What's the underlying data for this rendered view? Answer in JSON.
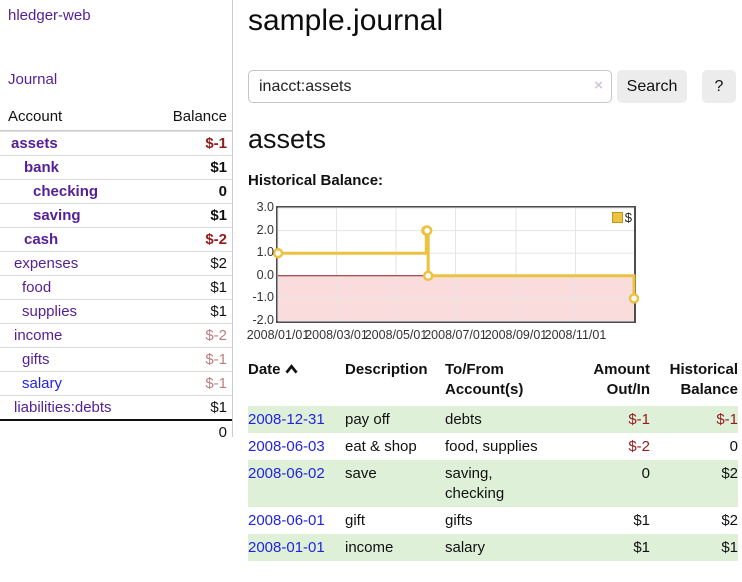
{
  "app": {
    "brand": "hledger-web",
    "nav_journal": "Journal"
  },
  "sidebar": {
    "accounts_header": {
      "account": "Account",
      "balance": "Balance"
    },
    "accounts": [
      {
        "name": "assets",
        "balance": "$-1",
        "row_class": "cur",
        "link_class": "",
        "bal_class": "neg",
        "depth_pad": "11px"
      },
      {
        "name": "bank",
        "balance": "$1",
        "row_class": "cur",
        "link_class": "",
        "bal_class": "",
        "depth_pad": "24px"
      },
      {
        "name": "checking",
        "balance": "0",
        "row_class": "cur",
        "link_class": "",
        "bal_class": "",
        "depth_pad": "33px"
      },
      {
        "name": "saving",
        "balance": "$1",
        "row_class": "cur",
        "link_class": "",
        "bal_class": "",
        "depth_pad": "33px"
      },
      {
        "name": "cash",
        "balance": "$-2",
        "row_class": "cur",
        "link_class": "",
        "bal_class": "neg",
        "depth_pad": "24px"
      },
      {
        "name": "expenses",
        "balance": "$2",
        "row_class": "",
        "link_class": "",
        "bal_class": "",
        "depth_pad": "14px"
      },
      {
        "name": "food",
        "balance": "$1",
        "row_class": "",
        "link_class": "",
        "bal_class": "",
        "depth_pad": "22px"
      },
      {
        "name": "supplies",
        "balance": "$1",
        "row_class": "",
        "link_class": "",
        "bal_class": "",
        "depth_pad": "22px"
      },
      {
        "name": "income",
        "balance": "$-2",
        "row_class": "",
        "link_class": "",
        "bal_class": "softneg",
        "depth_pad": "14px"
      },
      {
        "name": "gifts",
        "balance": "$-1",
        "row_class": "",
        "link_class": "",
        "bal_class": "softneg",
        "depth_pad": "22px"
      },
      {
        "name": "salary",
        "balance": "$-1",
        "row_class": "",
        "link_class": "blue",
        "bal_class": "softneg",
        "depth_pad": "22px"
      },
      {
        "name": "liabilities:debts",
        "balance": "$1",
        "row_class": "",
        "link_class": "",
        "bal_class": "",
        "depth_pad": "14px"
      }
    ],
    "total": "0"
  },
  "header": {
    "title": "sample.journal"
  },
  "search": {
    "value": "inacct:assets",
    "clear_icon": "×",
    "button": "Search",
    "help_button": "?"
  },
  "account_page": {
    "heading": "assets",
    "chart_label": "Historical Balance:"
  },
  "chart_data": {
    "type": "line",
    "step": true,
    "title": "Historical Balance",
    "series": [
      {
        "name": "$",
        "color": "#edc240",
        "points": [
          {
            "date": "2008/01/01",
            "v": 1
          },
          {
            "date": "2008/06/01",
            "v": 2
          },
          {
            "date": "2008/06/02",
            "v": 2
          },
          {
            "date": "2008/06/03",
            "v": 0
          },
          {
            "date": "2008/12/31",
            "v": -1
          }
        ]
      }
    ],
    "x_start": "2008/01/01",
    "x_end": "2008/12/31",
    "x_ticks": [
      {
        "label": "2008/01/01",
        "date": "2008/01/01"
      },
      {
        "label": "2008/03/01",
        "date": "2008/03/01"
      },
      {
        "label": "2008/05/01",
        "date": "2008/05/01"
      },
      {
        "label": "2008/07/01",
        "date": "2008/07/01"
      },
      {
        "label": "2008/09/01",
        "date": "2008/09/01"
      },
      {
        "label": "2008/11/01",
        "date": "2008/11/01"
      }
    ],
    "y_ticks": [
      {
        "label": "3.0",
        "v": 3
      },
      {
        "label": "2.0",
        "v": 2
      },
      {
        "label": "1.0",
        "v": 1
      },
      {
        "label": "0.0",
        "v": 0
      },
      {
        "label": "-1.0",
        "v": -1
      },
      {
        "label": "-2.0",
        "v": -2
      }
    ],
    "ylim": [
      -2,
      3
    ],
    "grid": true,
    "legend_position": "top-right",
    "negative_region_color": "#fbdcdc",
    "zero_line_color": "#8b2020",
    "grid_color": "#e5e5e5"
  },
  "register": {
    "columns": {
      "date": "Date",
      "description": "Description",
      "accounts": "To/From Account(s)",
      "amount": "Amount Out/In",
      "balance": "Historical Balance"
    },
    "rows": [
      {
        "date": "2008-12-31",
        "description": "pay off",
        "accounts": "debts",
        "amount": "$-1",
        "balance": "$-1",
        "row_class": "green",
        "amount_class": "neg",
        "balance_class": "neg"
      },
      {
        "date": "2008-06-03",
        "description": "eat & shop",
        "accounts": "food, supplies",
        "amount": "$-2",
        "balance": "0",
        "row_class": "",
        "amount_class": "neg",
        "balance_class": ""
      },
      {
        "date": "2008-06-02",
        "description": "save",
        "accounts": "saving, checking",
        "amount": "0",
        "balance": "$2",
        "row_class": "green",
        "amount_class": "",
        "balance_class": ""
      },
      {
        "date": "2008-06-01",
        "description": "gift",
        "accounts": "gifts",
        "amount": "$1",
        "balance": "$2",
        "row_class": "",
        "amount_class": "",
        "balance_class": ""
      },
      {
        "date": "2008-01-01",
        "description": "income",
        "accounts": "salary",
        "amount": "$1",
        "balance": "$1",
        "row_class": "green",
        "amount_class": "",
        "balance_class": ""
      }
    ]
  }
}
